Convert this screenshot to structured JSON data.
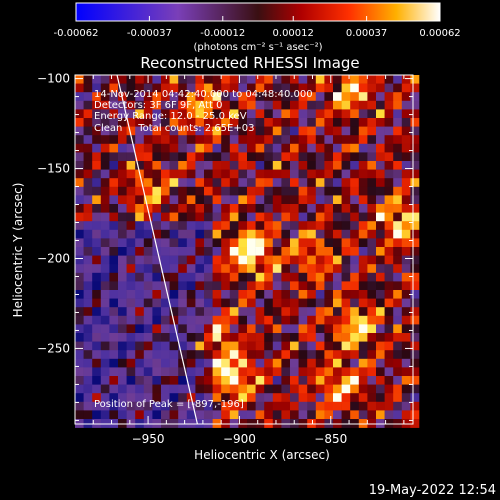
{
  "chart_data": {
    "type": "heatmap",
    "title": "Reconstructed RHESSI Image",
    "xlabel": "Heliocentric X (arcsec)",
    "ylabel": "Heliocentric Y (arcsec)",
    "xlim": [
      -990,
      -805
    ],
    "ylim": [
      -292,
      -98
    ],
    "x_ticks": [
      -950,
      -900,
      -850
    ],
    "y_ticks": [
      -100,
      -150,
      -200,
      -250
    ],
    "colorbar": {
      "ticks": [
        "-0.00062",
        "-0.00037",
        "-0.00012",
        "0.00012",
        "0.00037",
        "0.00062"
      ],
      "range": [
        -0.00062,
        0.00062
      ],
      "unit_label": "(photons cm⁻² s⁻¹ asec⁻²)"
    },
    "annotations": [
      "14-Nov-2014 04:42:40.000 to 04:48:40.000",
      "Detectors: 3F 6F 9F, Att 0",
      "Energy Range: 12.0 - 25.0 keV",
      "Clean     Total counts: 2.65E+03",
      "Position of Peak = [-897,-196]"
    ],
    "peak": {
      "x": -897,
      "y": -196
    },
    "limb_line": [
      [
        -967,
        -98
      ],
      [
        -923,
        -292
      ]
    ],
    "colormap": "blue-purple-red-yellow-white"
  },
  "footer": {
    "date": "19-May-2022 12:54"
  }
}
